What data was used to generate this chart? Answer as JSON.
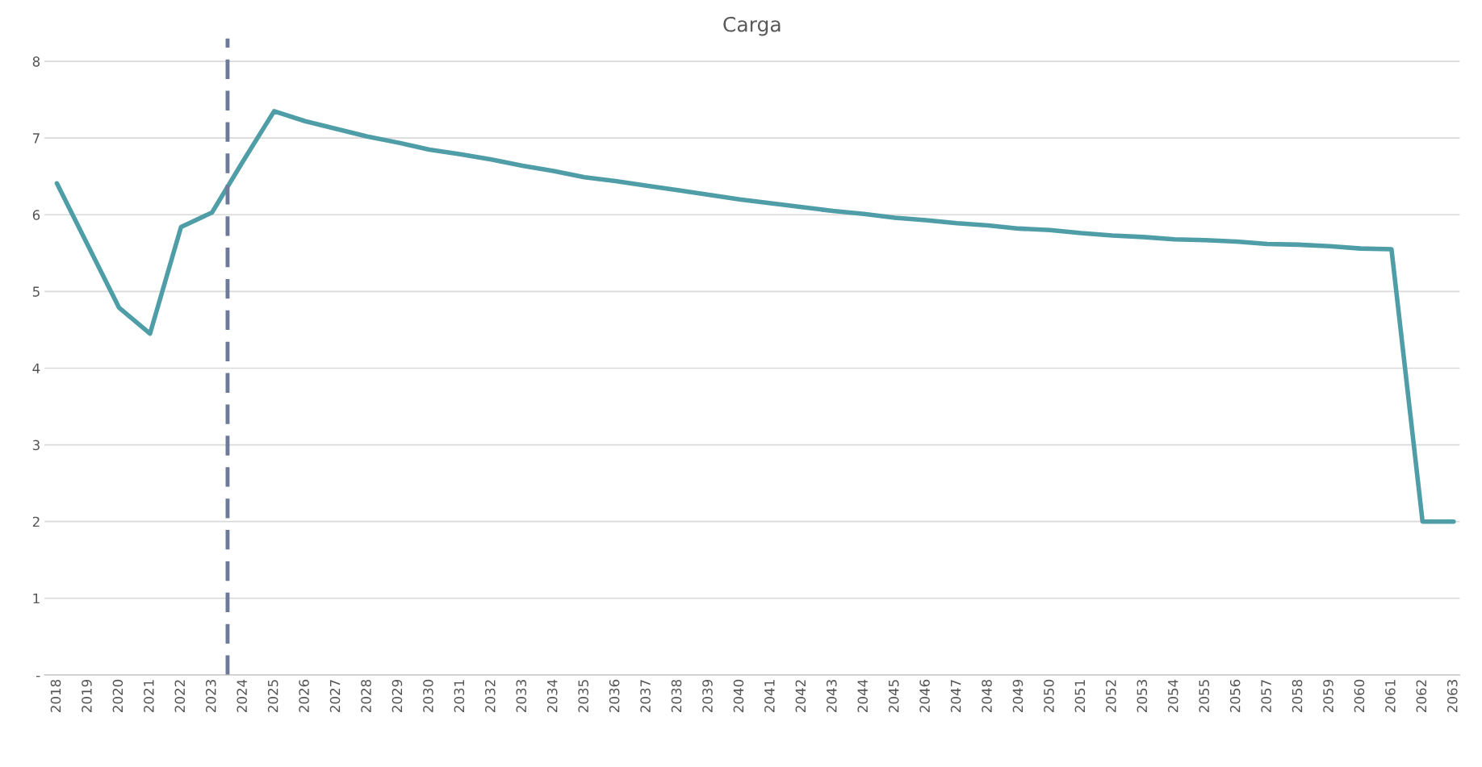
{
  "chart_data": {
    "type": "line",
    "title": "Carga",
    "x": [
      2018,
      2019,
      2020,
      2021,
      2022,
      2023,
      2024,
      2025,
      2026,
      2027,
      2028,
      2029,
      2030,
      2031,
      2032,
      2033,
      2034,
      2035,
      2036,
      2037,
      2038,
      2039,
      2040,
      2041,
      2042,
      2043,
      2044,
      2045,
      2046,
      2047,
      2048,
      2049,
      2050,
      2051,
      2052,
      2053,
      2054,
      2055,
      2056,
      2057,
      2058,
      2059,
      2060,
      2061,
      2062,
      2063
    ],
    "series": [
      {
        "color": "#4f9da6",
        "values": [
          6.41,
          5.6,
          4.79,
          4.45,
          5.84,
          6.03,
          6.7,
          7.35,
          7.22,
          7.12,
          7.02,
          6.94,
          6.85,
          6.79,
          6.72,
          6.64,
          6.57,
          6.49,
          6.44,
          6.38,
          6.32,
          6.26,
          6.2,
          6.15,
          6.1,
          6.05,
          6.01,
          5.96,
          5.93,
          5.89,
          5.86,
          5.82,
          5.8,
          5.76,
          5.73,
          5.71,
          5.68,
          5.67,
          5.65,
          5.62,
          5.61,
          5.59,
          5.56,
          5.55,
          2.0,
          2.0
        ]
      }
    ],
    "xlim": [
      2017.6,
      2063.2
    ],
    "xticks": [
      2018,
      2019,
      2020,
      2021,
      2022,
      2023,
      2024,
      2025,
      2026,
      2027,
      2028,
      2029,
      2030,
      2031,
      2032,
      2033,
      2034,
      2035,
      2036,
      2037,
      2038,
      2039,
      2040,
      2041,
      2042,
      2043,
      2044,
      2045,
      2046,
      2047,
      2048,
      2049,
      2050,
      2051,
      2052,
      2053,
      2054,
      2055,
      2056,
      2057,
      2058,
      2059,
      2060,
      2061,
      2062,
      2063
    ],
    "ylim": [
      0,
      8.3
    ],
    "yticks": [
      {
        "value": 0,
        "label": "-"
      },
      1,
      2,
      3,
      4,
      5,
      6,
      7,
      8
    ],
    "ref_lines": [
      {
        "axis": "x",
        "value": 2023.5,
        "color": "#6f7a99",
        "line_style": "dashed"
      }
    ],
    "grid": "y",
    "legend": false,
    "marker": "none",
    "line_style": "solid"
  }
}
